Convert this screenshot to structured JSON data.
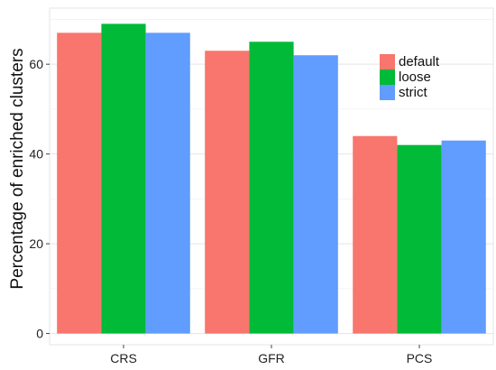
{
  "chart_data": {
    "type": "bar",
    "title": "",
    "xlabel": "",
    "ylabel": "Percentage of enriched clusters",
    "categories": [
      "CRS",
      "GFR",
      "PCS"
    ],
    "series": [
      {
        "name": "default",
        "color": "#F8766D",
        "values": [
          67,
          63,
          44
        ]
      },
      {
        "name": "loose",
        "color": "#00BA38",
        "values": [
          69,
          65,
          42
        ]
      },
      {
        "name": "strict",
        "color": "#619CFF",
        "values": [
          67,
          62,
          43
        ]
      }
    ],
    "yticks": [
      "0",
      "20",
      "40",
      "60"
    ],
    "ylim": [
      -2.5,
      72.5
    ],
    "grid": true,
    "legend_position": "top-right"
  }
}
